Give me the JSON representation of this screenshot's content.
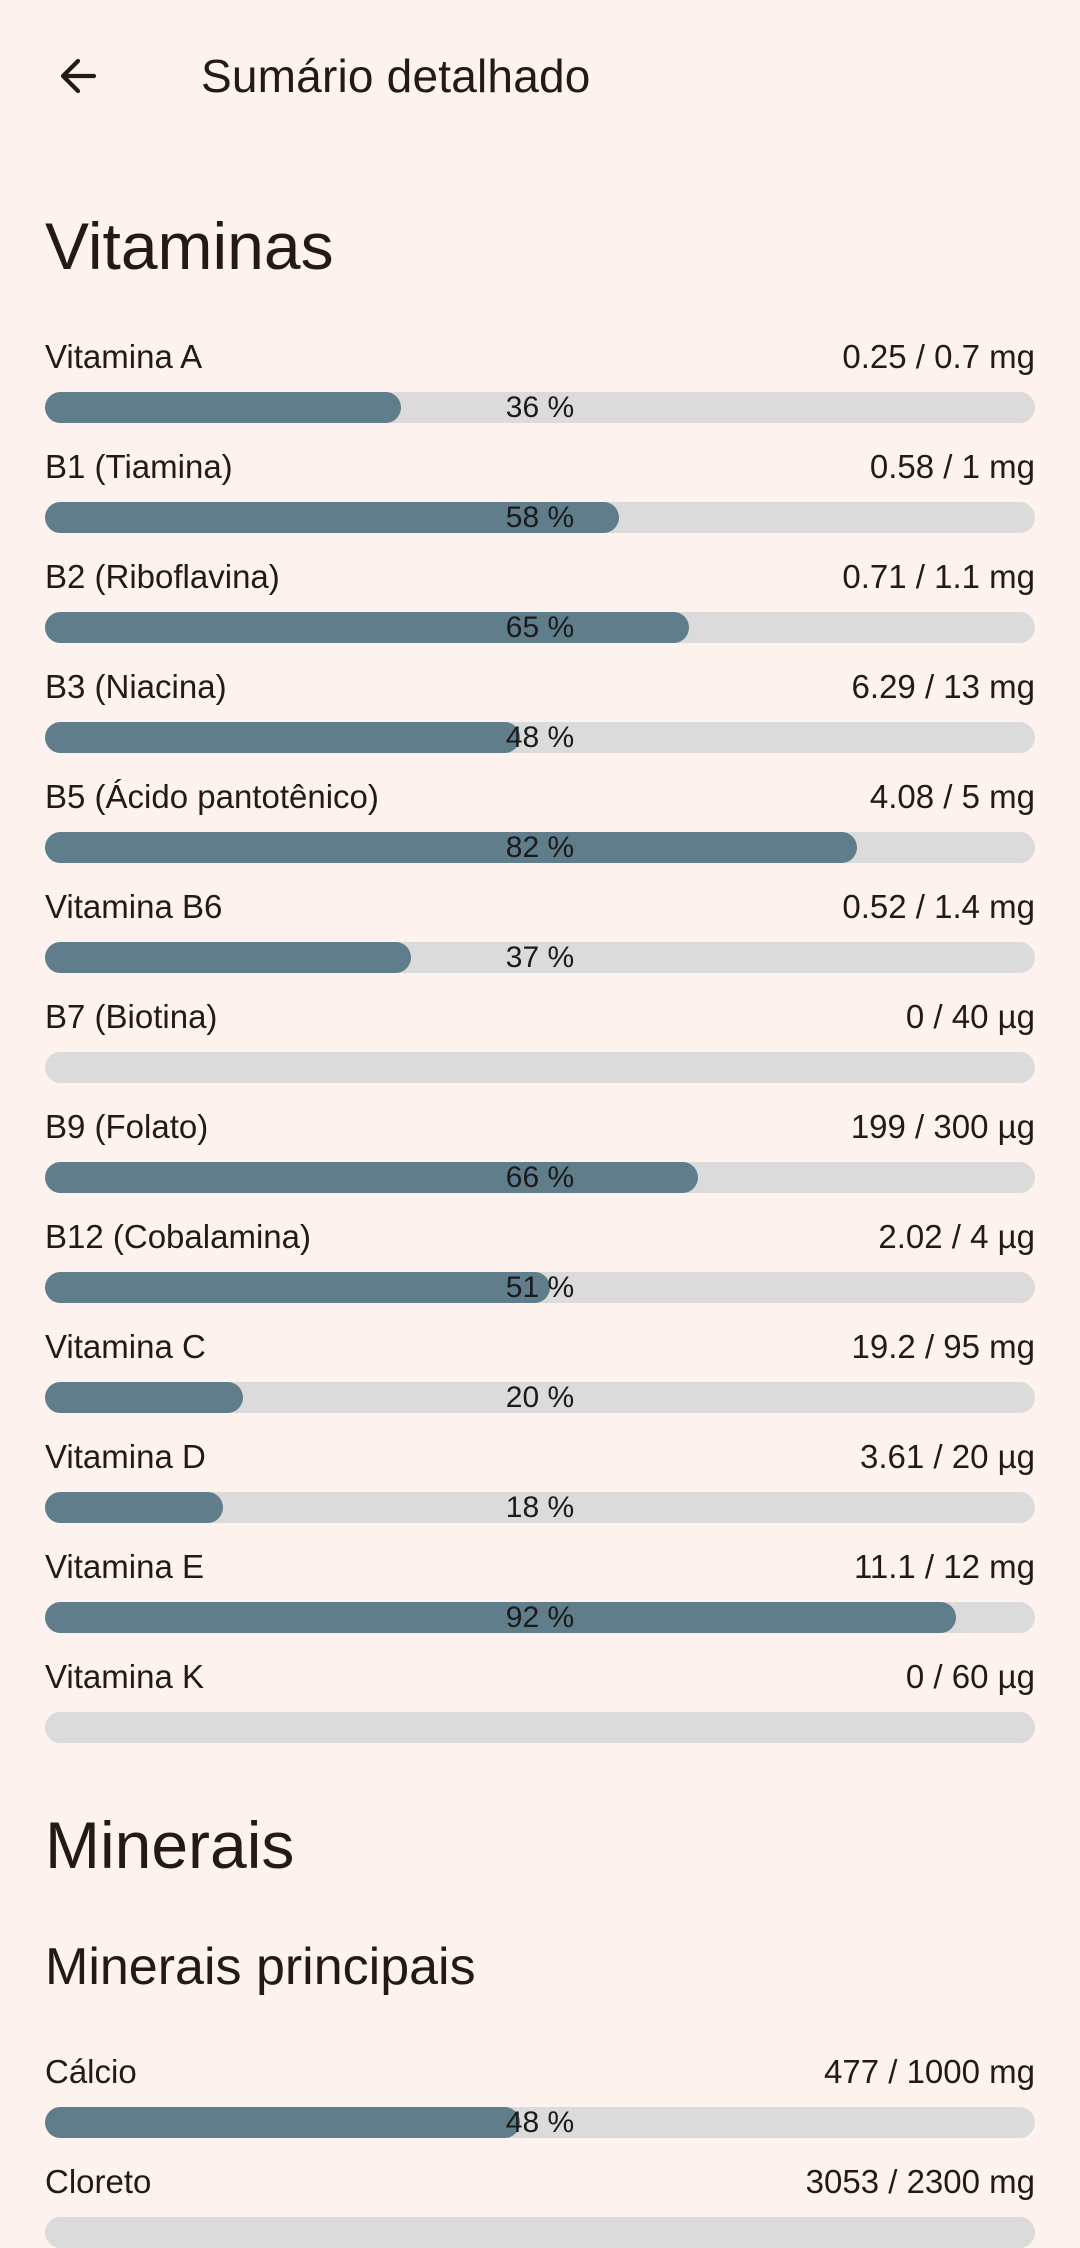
{
  "app_bar": {
    "title": "Sumário detalhado",
    "back_icon": "arrow-left"
  },
  "vitamins": {
    "heading": "Vitaminas",
    "rows": [
      {
        "label": "Vitamina A",
        "value": "0.25 / 0.7 mg",
        "percent": 36,
        "percent_label": "36 %"
      },
      {
        "label": "B1 (Tiamina)",
        "value": "0.58 / 1 mg",
        "percent": 58,
        "percent_label": "58 %"
      },
      {
        "label": "B2 (Riboflavina)",
        "value": "0.71 / 1.1 mg",
        "percent": 65,
        "percent_label": "65 %"
      },
      {
        "label": "B3 (Niacina)",
        "value": "6.29 / 13 mg",
        "percent": 48,
        "percent_label": "48 %"
      },
      {
        "label": "B5 (Ácido pantotênico)",
        "value": "4.08 / 5 mg",
        "percent": 82,
        "percent_label": "82 %"
      },
      {
        "label": "Vitamina B6",
        "value": "0.52 / 1.4 mg",
        "percent": 37,
        "percent_label": "37 %"
      },
      {
        "label": "B7 (Biotina)",
        "value": "0 / 40 µg",
        "percent": 0,
        "percent_label": ""
      },
      {
        "label": "B9 (Folato)",
        "value": "199 / 300 µg",
        "percent": 66,
        "percent_label": "66 %"
      },
      {
        "label": "B12 (Cobalamina)",
        "value": "2.02 / 4 µg",
        "percent": 51,
        "percent_label": "51 %"
      },
      {
        "label": "Vitamina C",
        "value": "19.2 / 95 mg",
        "percent": 20,
        "percent_label": "20 %"
      },
      {
        "label": "Vitamina D",
        "value": "3.61 / 20 µg",
        "percent": 18,
        "percent_label": "18 %"
      },
      {
        "label": "Vitamina E",
        "value": "11.1 / 12 mg",
        "percent": 92,
        "percent_label": "92 %"
      },
      {
        "label": "Vitamina K",
        "value": "0 / 60 µg",
        "percent": 0,
        "percent_label": ""
      }
    ]
  },
  "minerals": {
    "heading": "Minerais",
    "subheading": "Minerais principais",
    "rows": [
      {
        "label": "Cálcio",
        "value": "477 / 1000 mg",
        "percent": 48,
        "percent_label": "48 %"
      },
      {
        "label": "Cloreto",
        "value": "3053 / 2300 mg",
        "percent": null,
        "percent_label": ""
      }
    ]
  },
  "colors": {
    "background": "#fdf2ee",
    "text": "#211a16",
    "bar_fill": "#5f7d8a",
    "bar_track": "#dbdbdb",
    "percent_text": "#1b1b1b"
  }
}
